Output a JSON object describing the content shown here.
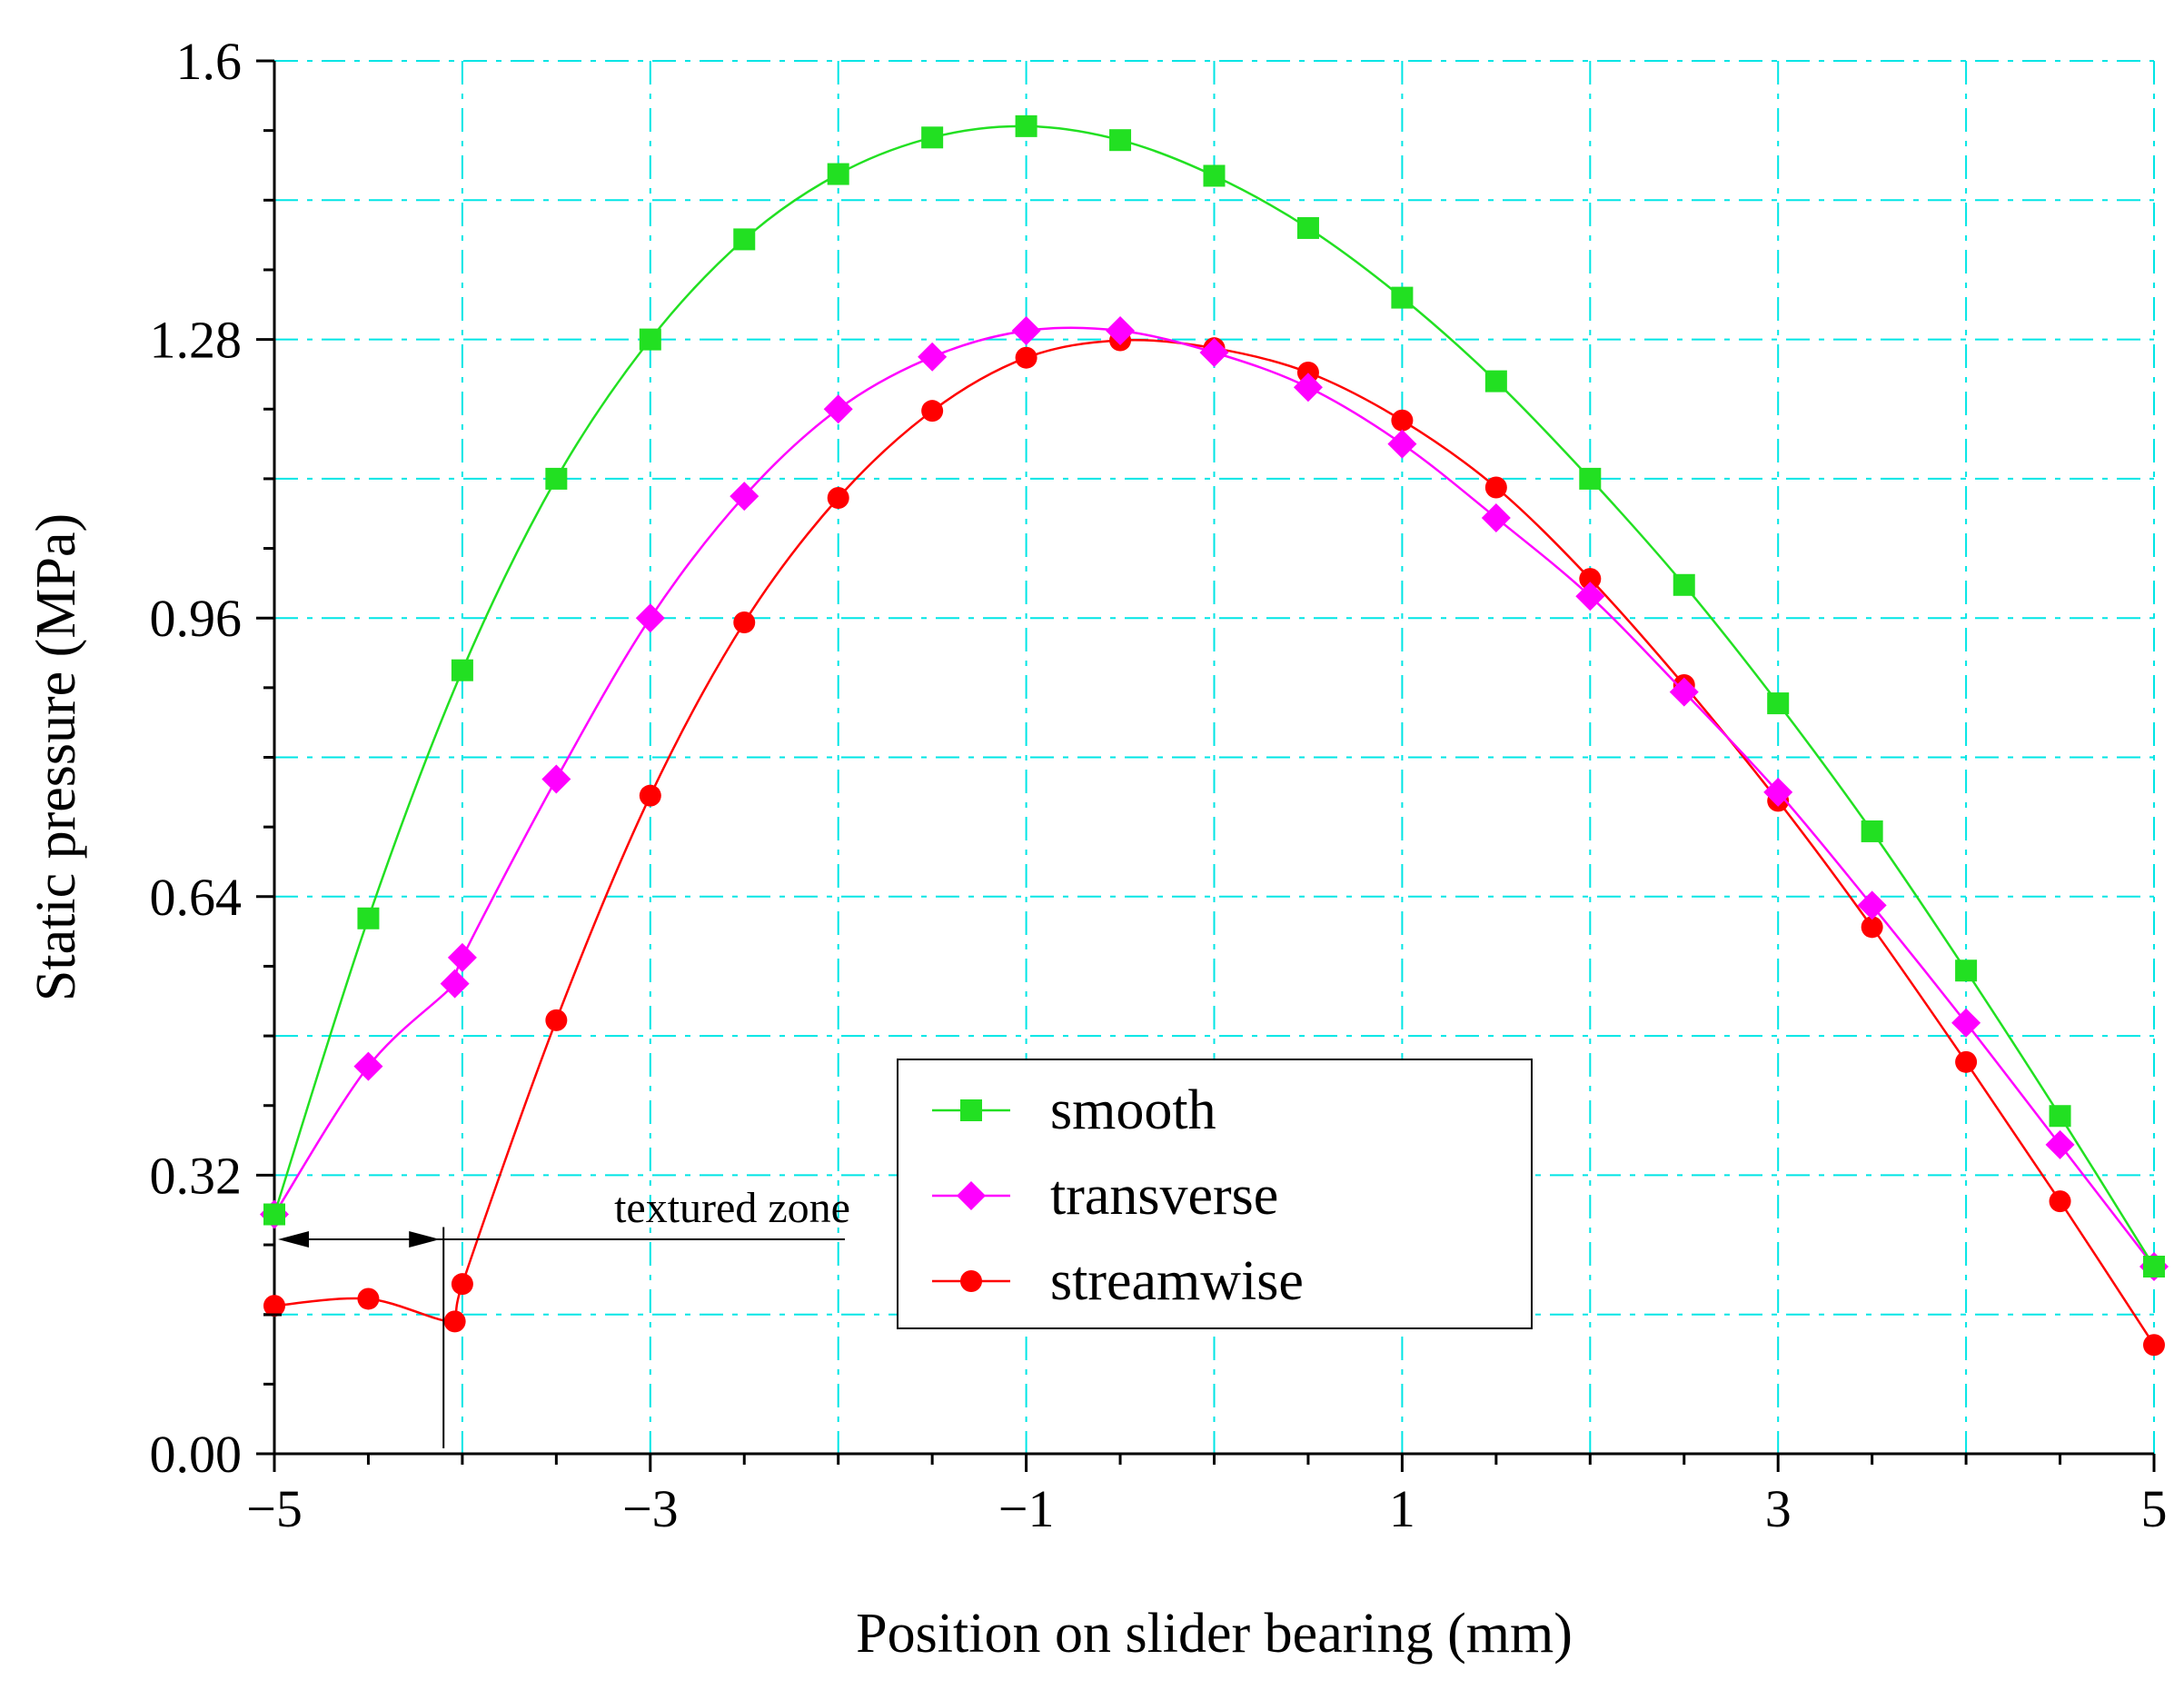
{
  "chart_data": {
    "type": "line",
    "title": "",
    "xlabel": "Position on slider bearing (mm)",
    "ylabel": "Static pressure (MPa)",
    "xlim": [
      -5,
      5
    ],
    "ylim": [
      0,
      1.6
    ],
    "x_ticks": [
      -5,
      -3,
      -1,
      1,
      3,
      5
    ],
    "x_tick_labels": [
      "−5",
      "−3",
      "−1",
      "1",
      "3",
      "5"
    ],
    "y_ticks": [
      0,
      0.32,
      0.64,
      0.96,
      1.28,
      1.6
    ],
    "y_tick_labels": [
      "0.00",
      "0.32",
      "0.64",
      "0.96",
      "1.28",
      "1.6"
    ],
    "grid": true,
    "grid_color": "#00e5e5",
    "legend_position": "bottom-center",
    "series": [
      {
        "name": "smooth",
        "marker": "square",
        "color": "#22e022",
        "x": [
          -5,
          -4.5,
          -4,
          -3.5,
          -3,
          -2.5,
          -2,
          -1.5,
          -1,
          -0.5,
          0,
          0.5,
          1,
          1.5,
          2,
          2.5,
          3,
          3.5,
          4,
          4.5,
          5
        ],
        "values": [
          0.275,
          0.615,
          0.9,
          1.12,
          1.28,
          1.395,
          1.47,
          1.512,
          1.525,
          1.509,
          1.468,
          1.408,
          1.328,
          1.232,
          1.12,
          0.998,
          0.862,
          0.715,
          0.555,
          0.388,
          0.215
        ]
      },
      {
        "name": "transverse",
        "marker": "diamond",
        "color": "#ff00ff",
        "x": [
          -5,
          -4.5,
          -4.04,
          -4,
          -3.5,
          -3,
          -2.5,
          -2,
          -1.5,
          -1,
          -0.5,
          0,
          0.5,
          1,
          1.5,
          2,
          2.5,
          3,
          3.5,
          4,
          4.5,
          5
        ],
        "values": [
          0.275,
          0.445,
          0.54,
          0.57,
          0.775,
          0.96,
          1.1,
          1.2,
          1.26,
          1.29,
          1.29,
          1.265,
          1.225,
          1.16,
          1.075,
          0.985,
          0.875,
          0.76,
          0.63,
          0.495,
          0.355,
          0.215
        ]
      },
      {
        "name": "streamwise",
        "marker": "circle",
        "color": "#ff0000",
        "x": [
          -5,
          -4.5,
          -4.04,
          -4,
          -3.5,
          -3,
          -2.5,
          -2,
          -1.5,
          -1,
          -0.5,
          0,
          0.5,
          1,
          1.5,
          2,
          2.5,
          3,
          3.5,
          4,
          4.5,
          5
        ],
        "values": [
          0.17,
          0.178,
          0.152,
          0.195,
          0.498,
          0.756,
          0.955,
          1.098,
          1.198,
          1.259,
          1.279,
          1.27,
          1.242,
          1.187,
          1.11,
          1.005,
          0.883,
          0.75,
          0.605,
          0.45,
          0.29,
          0.125
        ]
      }
    ],
    "annotations": [
      {
        "text": "textured zone",
        "x_start": -5,
        "x_end": -4.1,
        "y": 0.25
      }
    ]
  }
}
